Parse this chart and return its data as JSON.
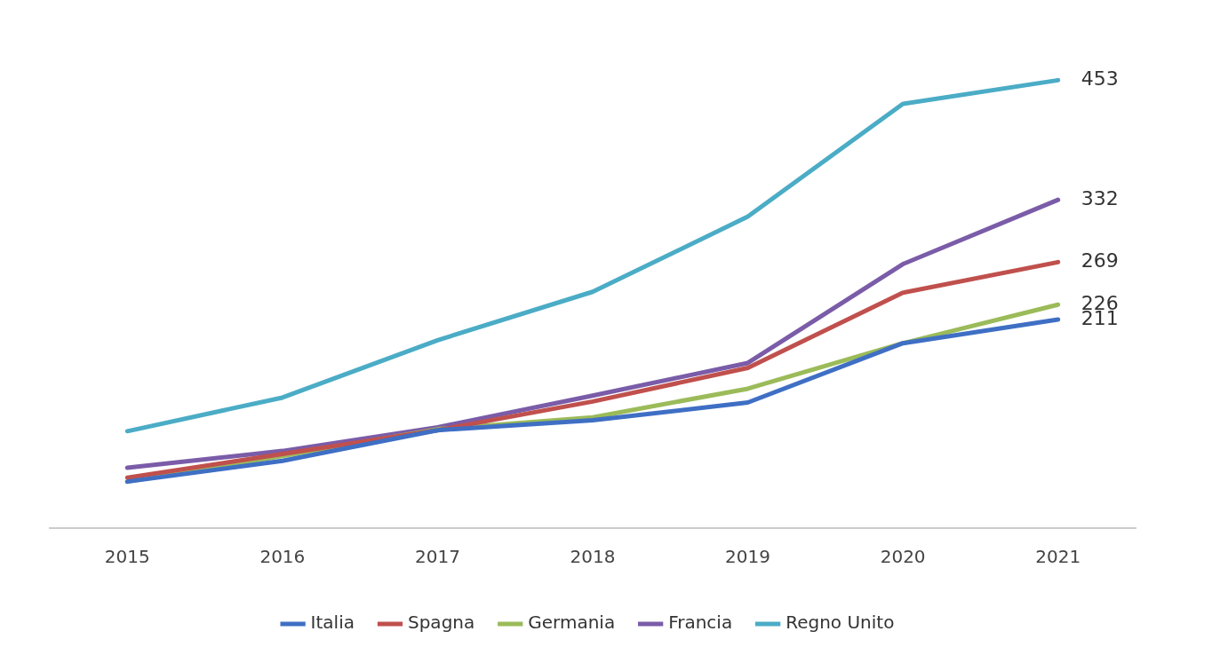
{
  "chart_data": {
    "type": "line",
    "categories": [
      "2015",
      "2016",
      "2017",
      "2018",
      "2019",
      "2020",
      "2021"
    ],
    "series": [
      {
        "name": "Italia",
        "color": "#3f6fc4",
        "values": [
          47,
          68,
          99,
          109,
          127,
          187,
          211
        ],
        "value_labels": [
          null,
          null,
          null,
          null,
          null,
          null,
          "211"
        ]
      },
      {
        "name": "Spagna",
        "color": "#c0504d",
        "values": [
          51,
          75,
          99,
          128,
          162,
          238,
          269
        ],
        "value_labels": [
          null,
          null,
          null,
          null,
          null,
          null,
          "269"
        ]
      },
      {
        "name": "Germania",
        "color": "#9bbb59",
        "values": [
          47,
          73,
          100,
          112,
          141,
          187,
          226
        ],
        "value_labels": [
          null,
          null,
          null,
          null,
          null,
          null,
          "226"
        ]
      },
      {
        "name": "Francia",
        "color": "#7a5ca8",
        "values": [
          61,
          78,
          102,
          134,
          167,
          267,
          332
        ],
        "value_labels": [
          null,
          null,
          null,
          null,
          null,
          null,
          "332"
        ]
      },
      {
        "name": "Regno Unito",
        "color": "#4bacc6",
        "values": [
          98,
          132,
          190,
          239,
          315,
          429,
          453
        ],
        "value_labels": [
          null,
          null,
          null,
          null,
          null,
          null,
          "453"
        ]
      }
    ],
    "grid": false,
    "legend": "bottom",
    "line_style": "solid"
  }
}
